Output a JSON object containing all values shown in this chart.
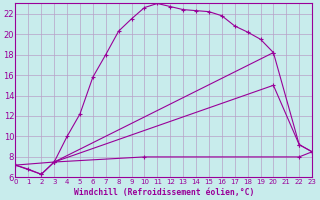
{
  "xlabel": "Windchill (Refroidissement éolien,°C)",
  "bg_color": "#c8ecec",
  "grid_color": "#b8a0c8",
  "line_color": "#990099",
  "ylim": [
    6,
    23
  ],
  "xlim": [
    0,
    23
  ],
  "yticks": [
    6,
    8,
    10,
    12,
    14,
    16,
    18,
    20,
    22
  ],
  "xticks": [
    0,
    1,
    2,
    3,
    4,
    5,
    6,
    7,
    8,
    9,
    10,
    11,
    12,
    13,
    14,
    15,
    16,
    17,
    18,
    19,
    20,
    21,
    22,
    23
  ],
  "line1_x": [
    0,
    1,
    2,
    3,
    4,
    5,
    6,
    7,
    8,
    9,
    10,
    11,
    12,
    13,
    14,
    15,
    16,
    17,
    18,
    19,
    20
  ],
  "line1_y": [
    7.2,
    6.8,
    6.3,
    7.5,
    10.0,
    12.2,
    15.8,
    18.0,
    20.3,
    21.5,
    22.6,
    23.0,
    22.7,
    22.4,
    22.3,
    22.2,
    21.8,
    20.8,
    20.2,
    19.5,
    18.2
  ],
  "line2_x": [
    0,
    2,
    3,
    20,
    22,
    23
  ],
  "line2_y": [
    7.2,
    6.3,
    7.5,
    18.2,
    9.2,
    8.5
  ],
  "line3_x": [
    0,
    3,
    20,
    22,
    23
  ],
  "line3_y": [
    7.2,
    7.5,
    15.0,
    9.2,
    8.5
  ],
  "line4_x": [
    3,
    10,
    22,
    23
  ],
  "line4_y": [
    7.5,
    8.0,
    8.0,
    8.5
  ]
}
